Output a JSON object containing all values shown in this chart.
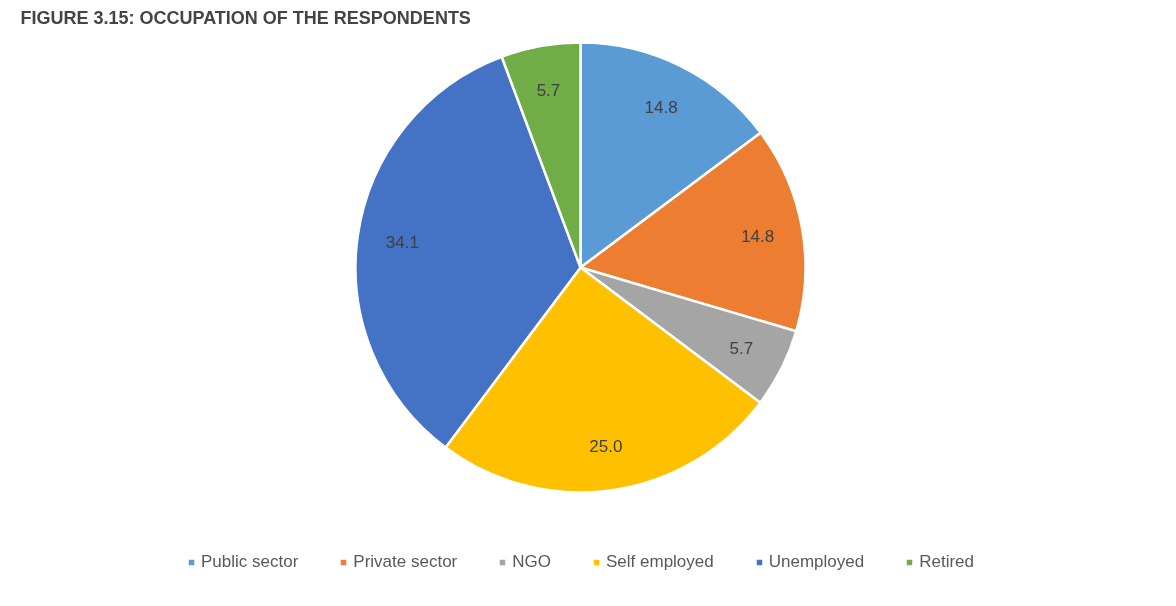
{
  "chart_data": {
    "type": "pie",
    "title": "FIGURE 3.15: OCCUPATION OF THE RESPONDENTS",
    "categories": [
      "Public sector",
      "Private sector",
      "NGO",
      "Self employed",
      "Unemployed",
      "Retired"
    ],
    "values": [
      14.8,
      14.8,
      5.7,
      25.0,
      34.1,
      5.7
    ],
    "colors": [
      "#5b9bd5",
      "#ed7d31",
      "#a5a5a5",
      "#ffc000",
      "#4472c4",
      "#70ad47"
    ],
    "value_labels": [
      "14.8",
      "14.8",
      "5.7",
      "25.0",
      "34.1",
      "5.7"
    ],
    "legend": "bottom"
  }
}
